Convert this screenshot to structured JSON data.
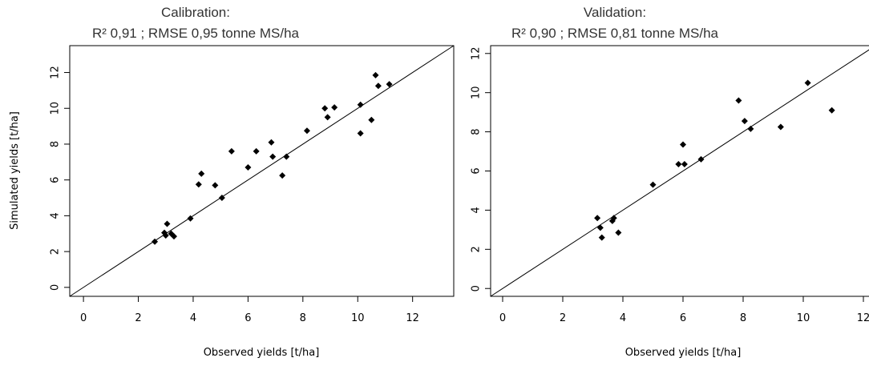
{
  "chart_data": [
    {
      "type": "scatter",
      "title": "Calibration:",
      "subtitle": "R² 0,91 ; RMSE 0,95 tonne MS/ha",
      "xlabel": "Observed yields [t/ha]",
      "ylabel": "Simulated yields [t/ha]",
      "xlim": [
        -0.5,
        13.5
      ],
      "ylim": [
        -0.5,
        13.5
      ],
      "xticks": [
        "0",
        "2",
        "4",
        "6",
        "8",
        "10",
        "12"
      ],
      "yticks": [
        "0",
        "2",
        "4",
        "6",
        "8",
        "10",
        "12"
      ],
      "reference_line": "1:1",
      "grid": false,
      "marker_color": "#000000",
      "points": [
        {
          "x": 2.6,
          "y": 2.55
        },
        {
          "x": 2.95,
          "y": 3.05
        },
        {
          "x": 3.0,
          "y": 2.9
        },
        {
          "x": 3.05,
          "y": 3.55
        },
        {
          "x": 3.2,
          "y": 3.0
        },
        {
          "x": 3.3,
          "y": 2.85
        },
        {
          "x": 3.9,
          "y": 3.85
        },
        {
          "x": 4.2,
          "y": 5.75
        },
        {
          "x": 4.3,
          "y": 6.35
        },
        {
          "x": 4.8,
          "y": 5.7
        },
        {
          "x": 5.05,
          "y": 5.0
        },
        {
          "x": 5.4,
          "y": 7.6
        },
        {
          "x": 6.0,
          "y": 6.7
        },
        {
          "x": 6.3,
          "y": 7.6
        },
        {
          "x": 6.85,
          "y": 8.1
        },
        {
          "x": 6.9,
          "y": 7.3
        },
        {
          "x": 7.25,
          "y": 6.25
        },
        {
          "x": 7.4,
          "y": 7.3
        },
        {
          "x": 8.15,
          "y": 8.75
        },
        {
          "x": 8.8,
          "y": 10.0
        },
        {
          "x": 8.9,
          "y": 9.5
        },
        {
          "x": 9.15,
          "y": 10.05
        },
        {
          "x": 10.1,
          "y": 10.2
        },
        {
          "x": 10.1,
          "y": 8.6
        },
        {
          "x": 10.5,
          "y": 9.35
        },
        {
          "x": 10.65,
          "y": 11.85
        },
        {
          "x": 10.75,
          "y": 11.25
        },
        {
          "x": 11.15,
          "y": 11.35
        }
      ]
    },
    {
      "type": "scatter",
      "title": "Validation:",
      "subtitle": "R² 0,90 ; RMSE 0,81 tonne MS/ha",
      "xlabel": "Observed yields [t/ha]",
      "ylabel": "",
      "xlim": [
        -0.4,
        12.4
      ],
      "ylim": [
        -0.4,
        12.4
      ],
      "xticks": [
        "0",
        "2",
        "4",
        "6",
        "8",
        "10",
        "12"
      ],
      "yticks": [
        "0",
        "2",
        "4",
        "6",
        "8",
        "10",
        "12"
      ],
      "reference_line": "1:1",
      "grid": false,
      "marker_color": "#000000",
      "points": [
        {
          "x": 3.15,
          "y": 3.6
        },
        {
          "x": 3.25,
          "y": 3.1
        },
        {
          "x": 3.3,
          "y": 2.6
        },
        {
          "x": 3.65,
          "y": 3.45
        },
        {
          "x": 3.7,
          "y": 3.6
        },
        {
          "x": 3.85,
          "y": 2.85
        },
        {
          "x": 5.0,
          "y": 5.3
        },
        {
          "x": 5.85,
          "y": 6.35
        },
        {
          "x": 6.0,
          "y": 7.35
        },
        {
          "x": 6.05,
          "y": 6.35
        },
        {
          "x": 6.6,
          "y": 6.6
        },
        {
          "x": 7.85,
          "y": 9.6
        },
        {
          "x": 8.05,
          "y": 8.55
        },
        {
          "x": 8.25,
          "y": 8.15
        },
        {
          "x": 9.25,
          "y": 8.25
        },
        {
          "x": 10.15,
          "y": 10.5
        },
        {
          "x": 10.95,
          "y": 9.1
        }
      ]
    }
  ]
}
